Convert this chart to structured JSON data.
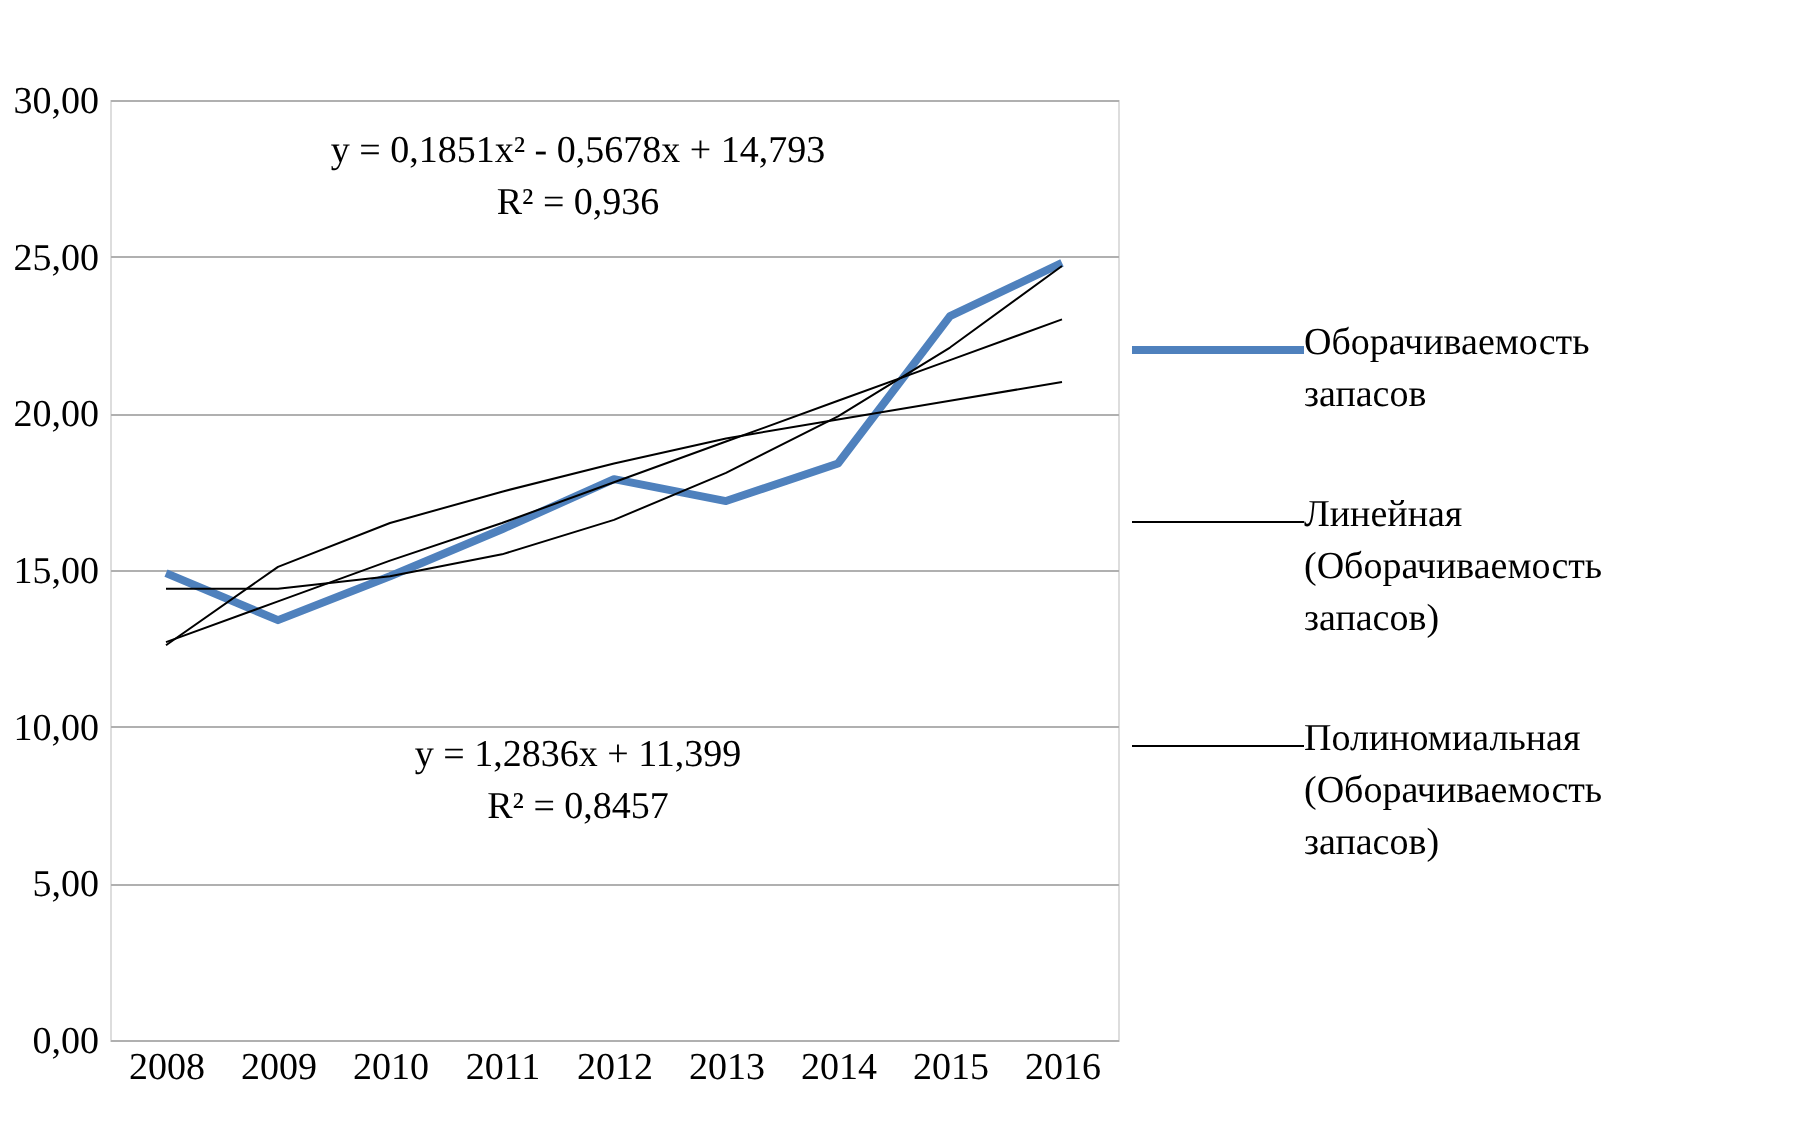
{
  "chart_data": {
    "type": "line",
    "categories": [
      "2008",
      "2009",
      "2010",
      "2011",
      "2012",
      "2013",
      "2014",
      "2015",
      "2016"
    ],
    "series": [
      {
        "name": "Оборачиваемость запасов",
        "color": "#4f81bd",
        "values": [
          14.9,
          13.4,
          14.8,
          16.3,
          17.9,
          17.2,
          18.4,
          23.1,
          24.8
        ]
      },
      {
        "name": "Линейная (Оборачиваемость запасов)",
        "color": "#000000",
        "values": [
          12.7,
          14.0,
          15.3,
          16.5,
          17.8,
          19.1,
          20.4,
          21.7,
          23.0
        ]
      },
      {
        "name": "Полиномиальная (Оборачиваемость запасов)",
        "color": "#000000",
        "values": [
          14.4,
          14.4,
          14.8,
          15.5,
          16.6,
          18.1,
          19.9,
          22.1,
          24.7
        ]
      },
      {
        "color": "#000000",
        "values": [
          12.6,
          15.1,
          16.5,
          17.5,
          18.4,
          19.2,
          19.8,
          20.4,
          21.0
        ]
      }
    ],
    "ylim": [
      0,
      30
    ],
    "yticks": [
      {
        "value": 0,
        "label": "0,00"
      },
      {
        "value": 5,
        "label": "5,00"
      },
      {
        "value": 10,
        "label": "10,00"
      },
      {
        "value": 15,
        "label": "15,00"
      },
      {
        "value": 20,
        "label": "20,00"
      },
      {
        "value": 25,
        "label": "25,00"
      },
      {
        "value": 30,
        "label": "30,00"
      }
    ],
    "annotations": [
      "y = 0,1851x² - 0,5678x + 14,793\nR² = 0,936",
      "y = 1,2836x + 11,399\nR² = 0,8457"
    ],
    "grid": "y",
    "legend": "right",
    "marker": "none",
    "line_style": "solid"
  }
}
